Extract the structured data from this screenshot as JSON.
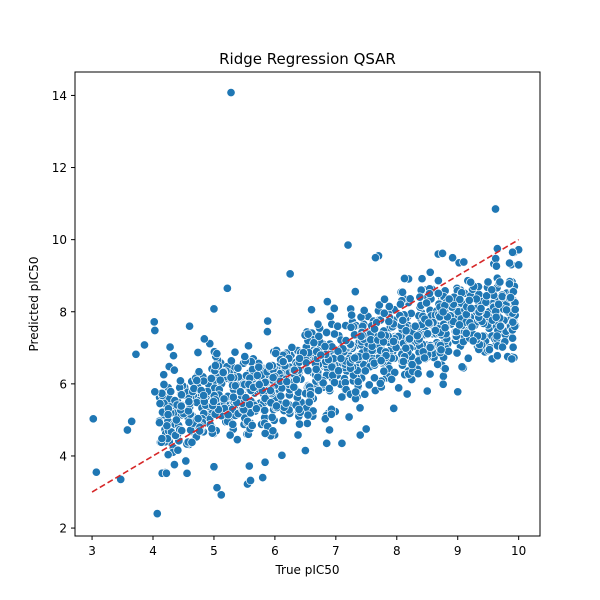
{
  "chart_data": {
    "type": "scatter",
    "title": "Ridge Regression QSAR",
    "xlabel": "True pIC50",
    "ylabel": "Predicted pIC50",
    "xlim": [
      2.72,
      10.35
    ],
    "ylim": [
      1.78,
      14.65
    ],
    "xticks": [
      "3",
      "4",
      "5",
      "6",
      "7",
      "8",
      "9",
      "10"
    ],
    "yticks": [
      "2",
      "4",
      "6",
      "8",
      "10",
      "12",
      "14"
    ],
    "grid": false,
    "legend": "none",
    "colors": {
      "points": "#1f77b4",
      "edge": "#ffffff",
      "reference_line": "#d62728"
    },
    "reference_line": {
      "style": "dashed",
      "from": [
        3.0,
        3.0
      ],
      "to": [
        10.0,
        10.0
      ]
    },
    "outliers": [
      {
        "x": 3.02,
        "y": 5.03
      },
      {
        "x": 3.07,
        "y": 3.55
      },
      {
        "x": 3.47,
        "y": 3.35
      },
      {
        "x": 3.58,
        "y": 4.72
      },
      {
        "x": 3.65,
        "y": 4.96
      },
      {
        "x": 3.72,
        "y": 6.82
      },
      {
        "x": 3.86,
        "y": 7.08
      },
      {
        "x": 4.02,
        "y": 7.72
      },
      {
        "x": 4.03,
        "y": 7.48
      },
      {
        "x": 4.07,
        "y": 2.4
      },
      {
        "x": 4.03,
        "y": 5.78
      },
      {
        "x": 4.15,
        "y": 3.52
      },
      {
        "x": 4.22,
        "y": 3.52
      },
      {
        "x": 4.28,
        "y": 7.02
      },
      {
        "x": 4.35,
        "y": 6.38
      },
      {
        "x": 4.6,
        "y": 7.6
      },
      {
        "x": 5.0,
        "y": 8.08
      },
      {
        "x": 5.05,
        "y": 3.12
      },
      {
        "x": 5.12,
        "y": 2.92
      },
      {
        "x": 5.22,
        "y": 8.65
      },
      {
        "x": 5.28,
        "y": 14.08
      },
      {
        "x": 5.55,
        "y": 3.22
      },
      {
        "x": 5.6,
        "y": 3.32
      },
      {
        "x": 5.8,
        "y": 3.4
      },
      {
        "x": 5.0,
        "y": 3.7
      },
      {
        "x": 5.58,
        "y": 3.72
      },
      {
        "x": 6.25,
        "y": 9.05
      },
      {
        "x": 6.5,
        "y": 4.15
      },
      {
        "x": 6.85,
        "y": 4.35
      },
      {
        "x": 7.1,
        "y": 4.35
      },
      {
        "x": 7.4,
        "y": 4.58
      },
      {
        "x": 7.2,
        "y": 9.85
      },
      {
        "x": 7.7,
        "y": 9.55
      },
      {
        "x": 7.95,
        "y": 5.32
      },
      {
        "x": 8.5,
        "y": 5.8
      },
      {
        "x": 9.0,
        "y": 5.78
      },
      {
        "x": 9.52,
        "y": 6.95
      },
      {
        "x": 9.65,
        "y": 6.78
      },
      {
        "x": 9.62,
        "y": 10.85
      },
      {
        "x": 9.65,
        "y": 9.75
      },
      {
        "x": 9.85,
        "y": 9.35
      },
      {
        "x": 10.0,
        "y": 9.72
      },
      {
        "x": 10.0,
        "y": 9.3
      },
      {
        "x": 9.8,
        "y": 8.05
      },
      {
        "x": 9.7,
        "y": 7.6
      },
      {
        "x": 9.9,
        "y": 9.65
      },
      {
        "x": 8.68,
        "y": 9.6
      },
      {
        "x": 8.75,
        "y": 9.62
      },
      {
        "x": 7.65,
        "y": 9.5
      },
      {
        "x": 9.1,
        "y": 9.38
      }
    ],
    "bulk": {
      "count": 1180,
      "x_range": [
        4.1,
        9.95
      ],
      "mean_line": {
        "slope": 0.55,
        "intercept": 2.75
      },
      "spread": 0.65
    }
  }
}
